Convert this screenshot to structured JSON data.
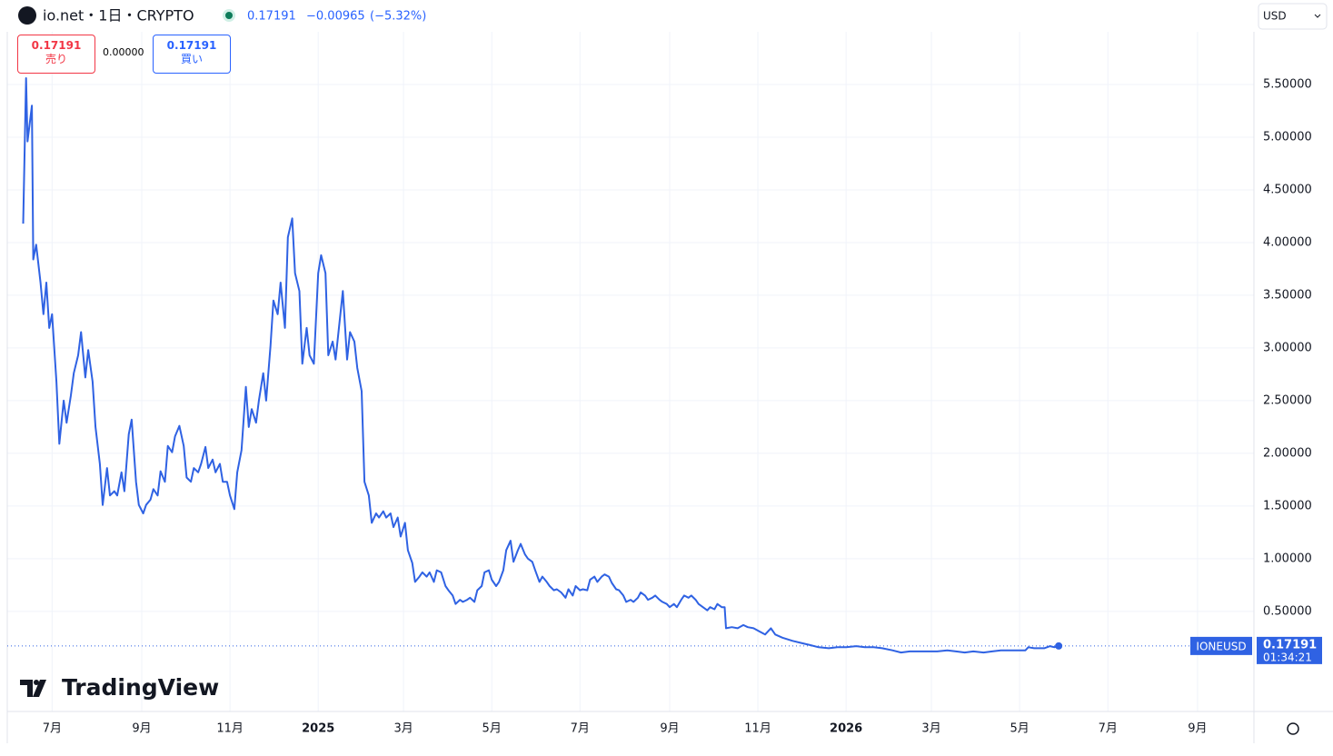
{
  "toolbar": {
    "symbol_title": "io.net・1日・CRYPTO",
    "price": "0.17191",
    "change": "−0.00965",
    "change_pct": "(−5.32%)",
    "currency": "USD",
    "sell_price": "0.17191",
    "sell_label": "売り",
    "spread": "0.00000",
    "buy_price": "0.17191",
    "buy_label": "買い",
    "brand": "TradingView"
  },
  "chart_data": {
    "type": "line",
    "symbol": "IONEUSD",
    "last_value_label": "0.17191",
    "countdown": "01:34:21",
    "series": [
      {
        "name": "IONEUSD",
        "color": "#2f62e3",
        "x": [
          -20,
          -18,
          -17,
          -14,
          -13,
          -11,
          -8,
          -6,
          -4,
          -2,
          0,
          3,
          5,
          8,
          10,
          13,
          15,
          18,
          20,
          23,
          25,
          28,
          30,
          33,
          35,
          38,
          40,
          43,
          45,
          48,
          50,
          53,
          55,
          58,
          60,
          63,
          65,
          68,
          70,
          73,
          75,
          78,
          80,
          83,
          85,
          88,
          91,
          93,
          96,
          98,
          101,
          103,
          106,
          108,
          111,
          113,
          116,
          118,
          121,
          123,
          126,
          128,
          131,
          134,
          136,
          138,
          141,
          143,
          146,
          148,
          151,
          153,
          156,
          158,
          161,
          163,
          166,
          168,
          171,
          173,
          176,
          178,
          181,
          184,
          186,
          189,
          191,
          194,
          196,
          199,
          201,
          204,
          206,
          209,
          211,
          214,
          216,
          219,
          221,
          224,
          226,
          229,
          231,
          234,
          236,
          239,
          241,
          244,
          246,
          249,
          251,
          254,
          256,
          259,
          261,
          264,
          266,
          269,
          272,
          274,
          277,
          279,
          282,
          284,
          287,
          289,
          292,
          294,
          297,
          299,
          302,
          304,
          307,
          309,
          312,
          314,
          317,
          319,
          322,
          324,
          327,
          329,
          332,
          334,
          337,
          339,
          342,
          344,
          347,
          349,
          352,
          355,
          357,
          360,
          362,
          365,
          367,
          370,
          372,
          375,
          377,
          380,
          382,
          385,
          387,
          390,
          392,
          395,
          397,
          400,
          402,
          405,
          407,
          410,
          412,
          415,
          417,
          420,
          422,
          425,
          427,
          430,
          432,
          435,
          437,
          440,
          442,
          445,
          447,
          450,
          453,
          455,
          458,
          460,
          463,
          465,
          466,
          470,
          474,
          478,
          481,
          485,
          489,
          493,
          497,
          500,
          505,
          512,
          518,
          524,
          530,
          537,
          543,
          549,
          556,
          562,
          568,
          574,
          581,
          587,
          593,
          600,
          606,
          612,
          619,
          625,
          631,
          637,
          644,
          650,
          656,
          663,
          669,
          673,
          675,
          679,
          683,
          686,
          690,
          693,
          696
        ],
        "values": [
          4.18,
          5.56,
          4.96,
          5.3,
          3.84,
          3.98,
          3.62,
          3.32,
          3.62,
          3.19,
          3.32,
          2.68,
          2.09,
          2.5,
          2.29,
          2.55,
          2.76,
          2.93,
          3.15,
          2.72,
          2.98,
          2.68,
          2.25,
          1.9,
          1.51,
          1.86,
          1.6,
          1.64,
          1.6,
          1.82,
          1.64,
          2.18,
          2.32,
          1.73,
          1.51,
          1.43,
          1.51,
          1.56,
          1.66,
          1.6,
          1.83,
          1.73,
          2.07,
          2.01,
          2.16,
          2.26,
          2.07,
          1.77,
          1.73,
          1.86,
          1.82,
          1.9,
          2.06,
          1.86,
          1.94,
          1.82,
          1.9,
          1.73,
          1.73,
          1.6,
          1.47,
          1.82,
          2.03,
          2.63,
          2.25,
          2.42,
          2.29,
          2.5,
          2.76,
          2.5,
          3.02,
          3.45,
          3.32,
          3.62,
          3.19,
          4.05,
          4.23,
          3.71,
          3.54,
          2.85,
          3.19,
          2.93,
          2.85,
          3.71,
          3.88,
          3.71,
          2.93,
          3.06,
          2.89,
          3.28,
          3.54,
          2.89,
          3.15,
          3.06,
          2.81,
          2.59,
          1.73,
          1.6,
          1.34,
          1.43,
          1.39,
          1.45,
          1.39,
          1.43,
          1.3,
          1.39,
          1.21,
          1.34,
          1.08,
          0.96,
          0.78,
          0.83,
          0.87,
          0.83,
          0.87,
          0.78,
          0.89,
          0.87,
          0.74,
          0.7,
          0.65,
          0.57,
          0.61,
          0.59,
          0.61,
          0.63,
          0.59,
          0.7,
          0.74,
          0.87,
          0.89,
          0.8,
          0.74,
          0.78,
          0.89,
          1.08,
          1.17,
          0.97,
          1.08,
          1.14,
          1.04,
          1.0,
          0.97,
          0.89,
          0.78,
          0.83,
          0.78,
          0.74,
          0.7,
          0.71,
          0.68,
          0.63,
          0.71,
          0.65,
          0.74,
          0.7,
          0.71,
          0.7,
          0.8,
          0.83,
          0.78,
          0.83,
          0.85,
          0.83,
          0.77,
          0.71,
          0.7,
          0.65,
          0.59,
          0.61,
          0.59,
          0.63,
          0.68,
          0.65,
          0.61,
          0.63,
          0.65,
          0.61,
          0.59,
          0.57,
          0.54,
          0.57,
          0.54,
          0.61,
          0.65,
          0.63,
          0.65,
          0.61,
          0.57,
          0.54,
          0.51,
          0.54,
          0.52,
          0.57,
          0.54,
          0.54,
          0.34,
          0.35,
          0.34,
          0.37,
          0.35,
          0.34,
          0.31,
          0.28,
          0.34,
          0.28,
          0.25,
          0.22,
          0.2,
          0.18,
          0.16,
          0.15,
          0.16,
          0.16,
          0.17,
          0.16,
          0.16,
          0.15,
          0.13,
          0.11,
          0.12,
          0.12,
          0.12,
          0.12,
          0.13,
          0.12,
          0.11,
          0.12,
          0.11,
          0.12,
          0.13,
          0.13,
          0.13,
          0.13,
          0.16,
          0.15,
          0.15,
          0.15,
          0.17,
          0.16,
          0.17191
        ]
      }
    ],
    "xlim": [
      -31,
      831
    ],
    "ylim": [
      -0.45,
      6.0
    ],
    "xticks": [
      {
        "value": 0,
        "label": "7月"
      },
      {
        "value": 62,
        "label": "9月"
      },
      {
        "value": 123,
        "label": "11月"
      },
      {
        "value": 184,
        "label": "2025"
      },
      {
        "value": 243,
        "label": "3月"
      },
      {
        "value": 304,
        "label": "5月"
      },
      {
        "value": 365,
        "label": "7月"
      },
      {
        "value": 427,
        "label": "9月"
      },
      {
        "value": 488,
        "label": "11月"
      },
      {
        "value": 549,
        "label": "2026"
      },
      {
        "value": 608,
        "label": "3月"
      },
      {
        "value": 669,
        "label": "5月"
      },
      {
        "value": 730,
        "label": "7月"
      },
      {
        "value": 792,
        "label": "9月"
      }
    ],
    "yticks": [
      {
        "value": 0.5,
        "label": "0.50000"
      },
      {
        "value": 1,
        "label": "1.00000"
      },
      {
        "value": 1.5,
        "label": "1.50000"
      },
      {
        "value": 2,
        "label": "2.00000"
      },
      {
        "value": 2.5,
        "label": "2.50000"
      },
      {
        "value": 3,
        "label": "3.00000"
      },
      {
        "value": 3.5,
        "label": "3.50000"
      },
      {
        "value": 4,
        "label": "4.00000"
      },
      {
        "value": 4.5,
        "label": "4.50000"
      },
      {
        "value": 5,
        "label": "5.00000"
      },
      {
        "value": 5.5,
        "label": "5.50000"
      }
    ],
    "grid": true
  }
}
